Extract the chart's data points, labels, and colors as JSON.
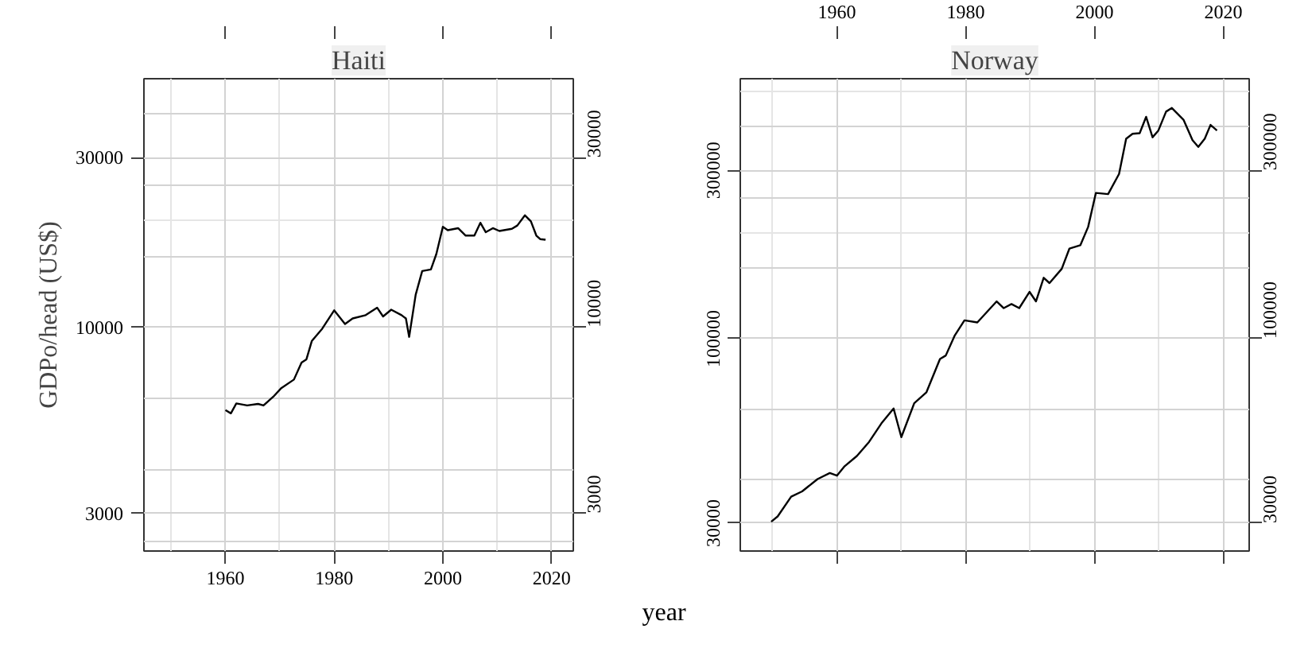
{
  "chart_data": [
    {
      "type": "line",
      "title": "Haiti",
      "ylabel": "GDPo/head (US$)",
      "xlabel": "year",
      "log": true,
      "marker": "none",
      "line_style": "solid",
      "x": [
        1960,
        1961,
        1962,
        1964,
        1966,
        1967,
        1968.8,
        1970.2,
        1972.6,
        1974,
        1974.9,
        1975.9,
        1977.8,
        1980,
        1982,
        1983.4,
        1985.8,
        1987.9,
        1989,
        1990.5,
        1992.4,
        1993.2,
        1993.8,
        1995,
        1996.2,
        1997.8,
        1998.8,
        2000,
        2000.9,
        2002.8,
        2004.2,
        2005.8,
        2006.9,
        2007.9,
        2009.2,
        2010.4,
        2012.7,
        2013.7,
        2015.1,
        2016.2,
        2017.2,
        2017.9,
        2018.9
      ],
      "series": [
        {
          "color": "#000000",
          "values": [
            5850,
            5730,
            6110,
            6030,
            6090,
            6030,
            6380,
            6730,
            7130,
            7960,
            8130,
            9160,
            9910,
            11160,
            10220,
            10590,
            10820,
            11360,
            10730,
            11210,
            10820,
            10590,
            9400,
            12350,
            14400,
            14550,
            16070,
            19170,
            18750,
            19000,
            18110,
            18110,
            19680,
            18510,
            19000,
            18660,
            18920,
            19330,
            20650,
            19860,
            18110,
            17700,
            17630
          ]
        }
      ],
      "xlim": [
        1945,
        2024
      ],
      "xticks": [
        1960,
        1980,
        2000,
        2020
      ],
      "ylim": [
        2350,
        50000
      ],
      "yticks": [
        {
          "value": 2512,
          "label": null
        },
        {
          "value": 3000,
          "label": "3000"
        },
        {
          "value": 3981,
          "label": null
        },
        {
          "value": 6310,
          "label": null
        },
        {
          "value": 10000,
          "label": "10000"
        },
        {
          "value": 15849,
          "label": null
        },
        {
          "value": 25119,
          "label": null
        },
        {
          "value": 30000,
          "label": "30000"
        },
        {
          "value": 39811,
          "label": null
        }
      ],
      "grid": true
    },
    {
      "type": "line",
      "title": "Norway",
      "log": true,
      "marker": "none",
      "line_style": "solid",
      "x": [
        1949.8,
        1950.8,
        1952.9,
        1954.6,
        1957,
        1958.9,
        1960,
        1961.2,
        1963.1,
        1965,
        1966.9,
        1968.8,
        1970,
        1972,
        1973.9,
        1976,
        1976.9,
        1978.3,
        1979.8,
        1981.8,
        1984.8,
        1985.9,
        1987.1,
        1988.3,
        1989.9,
        1990.9,
        1992.1,
        1993,
        1994.9,
        1996.1,
        1997.8,
        1999,
        2000.2,
        2002.1,
        2003.8,
        2004.9,
        2005.9,
        2007,
        2008,
        2009,
        2009.9,
        2011.1,
        2012,
        2013.8,
        2015.2,
        2016.1,
        2017.1,
        2018,
        2019
      ],
      "series": [
        {
          "color": "#000000",
          "values": [
            30270,
            31330,
            35650,
            36900,
            40000,
            41600,
            40900,
            43500,
            46500,
            51000,
            57500,
            63400,
            52600,
            65600,
            70500,
            87600,
            89600,
            102200,
            112700,
            111200,
            127600,
            122100,
            125400,
            122100,
            135800,
            127600,
            148900,
            143800,
            157800,
            180200,
            184200,
            207500,
            259000,
            257000,
            293300,
            368900,
            381000,
            382600,
            425700,
            372500,
            389300,
            440500,
            451000,
            417700,
            365600,
            349800,
            368900,
            403800,
            389300
          ]
        }
      ],
      "xlim": [
        1945,
        2024
      ],
      "xticks": [
        1960,
        1980,
        2000,
        2020
      ],
      "ylim": [
        25000,
        546000
      ],
      "yticks": [
        {
          "value": 30000,
          "label": "30000"
        },
        {
          "value": 39811,
          "label": null
        },
        {
          "value": 63096,
          "label": null
        },
        {
          "value": 100000,
          "label": "100000"
        },
        {
          "value": 158489,
          "label": null
        },
        {
          "value": 251189,
          "label": null
        },
        {
          "value": 300000,
          "label": "300000"
        },
        {
          "value": 398107,
          "label": null
        }
      ],
      "grid": true
    }
  ]
}
